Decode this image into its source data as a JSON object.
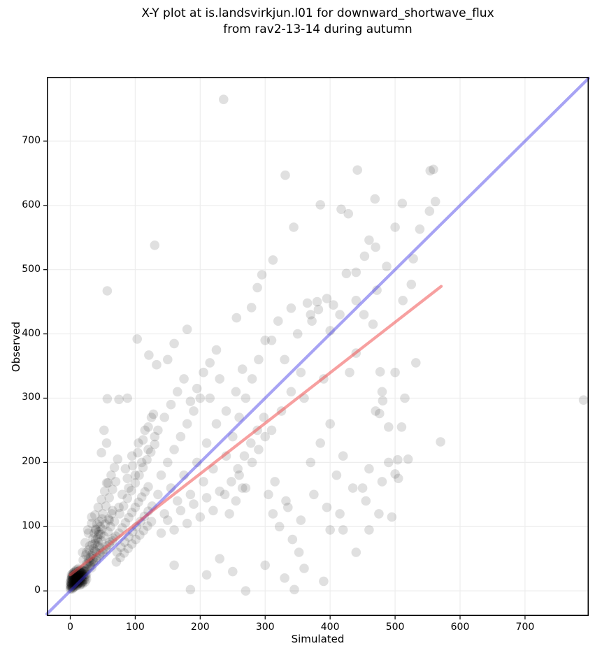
{
  "title": {
    "line1": "X-Y plot at is.landsvirkjun.l01 for downward_shortwave_flux",
    "line2": "from rav2-13-14 during autumn"
  },
  "chart_data": {
    "type": "scatter",
    "title": "X-Y plot at is.landsvirkjun.l01 for downward_shortwave_flux from rav2-13-14 during autumn",
    "xlabel": "Simulated",
    "ylabel": "Observed",
    "xlim": [
      -36,
      798
    ],
    "ylim": [
      -39,
      800
    ],
    "xticks": [
      0,
      100,
      200,
      300,
      400,
      500,
      600,
      700
    ],
    "yticks": [
      0,
      100,
      200,
      300,
      400,
      500,
      600,
      700
    ],
    "grid": true,
    "legend": "none",
    "colors": {
      "background": "#ffffff",
      "gridline": "#ededed",
      "frame": "#000000",
      "marker": "rgba(0,0,0,0.12)",
      "one_to_one_line": "#3c32e6",
      "fit_line": "#f05252"
    },
    "marker_radius": 6.8,
    "lines": [
      {
        "name": "one-to-one",
        "x1": -36,
        "y1": -36,
        "x2": 798,
        "y2": 798,
        "color": "#3c32e6",
        "opacity": 0.45,
        "width": 4.2
      },
      {
        "name": "fit",
        "x1": 0,
        "y1": 25,
        "x2": 571,
        "y2": 474,
        "color": "#f05252",
        "opacity": 0.55,
        "width": 4.2
      }
    ],
    "points": [
      [
        1,
        4
      ],
      [
        2,
        6
      ],
      [
        3,
        3
      ],
      [
        4,
        8
      ],
      [
        5,
        5
      ],
      [
        6,
        10
      ],
      [
        2,
        12
      ],
      [
        7,
        7
      ],
      [
        8,
        12
      ],
      [
        3,
        16
      ],
      [
        9,
        9
      ],
      [
        10,
        14
      ],
      [
        4,
        20
      ],
      [
        11,
        11
      ],
      [
        12,
        16
      ],
      [
        5,
        24
      ],
      [
        13,
        13
      ],
      [
        14,
        18
      ],
      [
        6,
        9
      ],
      [
        15,
        15
      ],
      [
        1,
        10
      ],
      [
        2,
        18
      ],
      [
        3,
        22
      ],
      [
        4,
        14
      ],
      [
        5,
        28
      ],
      [
        6,
        18
      ],
      [
        7,
        22
      ],
      [
        8,
        26
      ],
      [
        9,
        30
      ],
      [
        10,
        20
      ],
      [
        11,
        25
      ],
      [
        12,
        30
      ],
      [
        13,
        35
      ],
      [
        14,
        28
      ],
      [
        15,
        22
      ],
      [
        16,
        16
      ],
      [
        17,
        20
      ],
      [
        18,
        24
      ],
      [
        19,
        28
      ],
      [
        20,
        32
      ],
      [
        0,
        3
      ],
      [
        1,
        7
      ],
      [
        2,
        9
      ],
      [
        3,
        11
      ],
      [
        4,
        5
      ],
      [
        5,
        13
      ],
      [
        6,
        15
      ],
      [
        7,
        17
      ],
      [
        8,
        19
      ],
      [
        9,
        21
      ],
      [
        10,
        8
      ],
      [
        11,
        17
      ],
      [
        12,
        21
      ],
      [
        13,
        25
      ],
      [
        14,
        12
      ],
      [
        15,
        30
      ],
      [
        16,
        24
      ],
      [
        17,
        28
      ],
      [
        18,
        32
      ],
      [
        19,
        22
      ],
      [
        0,
        8
      ],
      [
        1,
        13
      ],
      [
        2,
        15
      ],
      [
        3,
        7
      ],
      [
        4,
        17
      ],
      [
        5,
        19
      ],
      [
        6,
        21
      ],
      [
        7,
        11
      ],
      [
        8,
        23
      ],
      [
        9,
        13
      ],
      [
        10,
        26
      ],
      [
        11,
        9
      ],
      [
        12,
        12
      ],
      [
        13,
        19
      ],
      [
        14,
        23
      ],
      [
        15,
        9
      ],
      [
        16,
        28
      ],
      [
        17,
        13
      ],
      [
        18,
        17
      ],
      [
        19,
        11
      ],
      [
        2,
        25
      ],
      [
        4,
        27
      ],
      [
        6,
        29
      ],
      [
        8,
        31
      ],
      [
        10,
        33
      ],
      [
        12,
        27
      ],
      [
        14,
        31
      ],
      [
        16,
        33
      ],
      [
        18,
        28
      ],
      [
        20,
        25
      ],
      [
        1,
        18
      ],
      [
        3,
        20
      ],
      [
        5,
        22
      ],
      [
        7,
        24
      ],
      [
        9,
        26
      ],
      [
        11,
        20
      ],
      [
        13,
        15
      ],
      [
        15,
        18
      ],
      [
        17,
        24
      ],
      [
        19,
        16
      ],
      [
        0,
        14
      ],
      [
        2,
        22
      ],
      [
        4,
        24
      ],
      [
        6,
        26
      ],
      [
        8,
        15
      ],
      [
        10,
        17
      ],
      [
        12,
        19
      ],
      [
        14,
        21
      ],
      [
        16,
        11
      ],
      [
        18,
        13
      ],
      [
        20,
        15
      ],
      [
        22,
        18
      ],
      [
        21,
        22
      ],
      [
        23,
        26
      ],
      [
        22,
        30
      ],
      [
        24,
        22
      ],
      [
        25,
        26
      ],
      [
        24,
        32
      ],
      [
        23,
        14
      ],
      [
        25,
        18
      ],
      [
        32,
        44
      ],
      [
        34,
        58
      ],
      [
        36,
        66
      ],
      [
        38,
        74
      ],
      [
        42,
        82
      ],
      [
        44,
        92
      ],
      [
        46,
        100
      ],
      [
        40,
        60
      ],
      [
        35,
        50
      ],
      [
        37,
        90
      ],
      [
        41,
        104
      ],
      [
        43,
        76
      ],
      [
        47,
        88
      ],
      [
        49,
        112
      ],
      [
        33,
        36
      ],
      [
        39,
        96
      ],
      [
        45,
        68
      ],
      [
        31,
        52
      ],
      [
        29,
        46
      ],
      [
        27,
        42
      ],
      [
        22,
        35
      ],
      [
        25,
        42
      ],
      [
        28,
        50
      ],
      [
        30,
        38
      ],
      [
        32,
        55
      ],
      [
        35,
        45
      ],
      [
        38,
        62
      ],
      [
        40,
        48
      ],
      [
        42,
        70
      ],
      [
        45,
        55
      ],
      [
        48,
        78
      ],
      [
        50,
        60
      ],
      [
        52,
        85
      ],
      [
        55,
        65
      ],
      [
        58,
        92
      ],
      [
        60,
        72
      ],
      [
        62,
        100
      ],
      [
        65,
        78
      ],
      [
        68,
        108
      ],
      [
        70,
        85
      ],
      [
        25,
        60
      ],
      [
        30,
        70
      ],
      [
        35,
        82
      ],
      [
        40,
        95
      ],
      [
        45,
        108
      ],
      [
        50,
        120
      ],
      [
        55,
        132
      ],
      [
        60,
        145
      ],
      [
        65,
        158
      ],
      [
        70,
        170
      ],
      [
        28,
        90
      ],
      [
        33,
        105
      ],
      [
        38,
        118
      ],
      [
        43,
        130
      ],
      [
        48,
        142
      ],
      [
        53,
        155
      ],
      [
        58,
        168
      ],
      [
        63,
        180
      ],
      [
        68,
        192
      ],
      [
        73,
        205
      ],
      [
        20,
        48
      ],
      [
        24,
        56
      ],
      [
        29,
        64
      ],
      [
        34,
        72
      ],
      [
        39,
        80
      ],
      [
        44,
        88
      ],
      [
        49,
        96
      ],
      [
        54,
        104
      ],
      [
        59,
        112
      ],
      [
        64,
        120
      ],
      [
        75,
        90
      ],
      [
        80,
        98
      ],
      [
        85,
        106
      ],
      [
        90,
        114
      ],
      [
        95,
        122
      ],
      [
        100,
        130
      ],
      [
        105,
        138
      ],
      [
        110,
        146
      ],
      [
        115,
        154
      ],
      [
        120,
        162
      ],
      [
        76,
        120
      ],
      [
        82,
        132
      ],
      [
        88,
        144
      ],
      [
        94,
        156
      ],
      [
        100,
        168
      ],
      [
        106,
        180
      ],
      [
        112,
        192
      ],
      [
        118,
        204
      ],
      [
        124,
        216
      ],
      [
        130,
        228
      ],
      [
        72,
        60
      ],
      [
        78,
        68
      ],
      [
        84,
        76
      ],
      [
        90,
        84
      ],
      [
        96,
        92
      ],
      [
        102,
        100
      ],
      [
        108,
        108
      ],
      [
        114,
        116
      ],
      [
        120,
        124
      ],
      [
        126,
        132
      ],
      [
        21,
        30
      ],
      [
        26,
        34
      ],
      [
        31,
        40
      ],
      [
        36,
        46
      ],
      [
        41,
        52
      ],
      [
        46,
        58
      ],
      [
        51,
        64
      ],
      [
        56,
        70
      ],
      [
        61,
        76
      ],
      [
        66,
        82
      ],
      [
        71,
        45
      ],
      [
        77,
        52
      ],
      [
        83,
        59
      ],
      [
        89,
        66
      ],
      [
        95,
        73
      ],
      [
        101,
        80
      ],
      [
        107,
        87
      ],
      [
        113,
        94
      ],
      [
        119,
        101
      ],
      [
        125,
        108
      ],
      [
        23,
        75
      ],
      [
        27,
        95
      ],
      [
        33,
        115
      ],
      [
        19,
        60
      ],
      [
        48,
        215
      ],
      [
        52,
        250
      ],
      [
        135,
        150
      ],
      [
        140,
        180
      ],
      [
        145,
        120
      ],
      [
        150,
        200
      ],
      [
        155,
        160
      ],
      [
        160,
        220
      ],
      [
        165,
        140
      ],
      [
        170,
        240
      ],
      [
        175,
        180
      ],
      [
        180,
        260
      ],
      [
        185,
        150
      ],
      [
        190,
        280
      ],
      [
        195,
        200
      ],
      [
        200,
        300
      ],
      [
        205,
        170
      ],
      [
        210,
        230
      ],
      [
        215,
        300
      ],
      [
        220,
        190
      ],
      [
        225,
        260
      ],
      [
        230,
        330
      ],
      [
        140,
        90
      ],
      [
        150,
        110
      ],
      [
        160,
        95
      ],
      [
        170,
        125
      ],
      [
        180,
        105
      ],
      [
        190,
        135
      ],
      [
        200,
        115
      ],
      [
        210,
        145
      ],
      [
        220,
        125
      ],
      [
        230,
        155
      ],
      [
        135,
        250
      ],
      [
        145,
        270
      ],
      [
        155,
        290
      ],
      [
        165,
        310
      ],
      [
        175,
        330
      ],
      [
        185,
        295
      ],
      [
        195,
        315
      ],
      [
        205,
        340
      ],
      [
        215,
        355
      ],
      [
        225,
        375
      ],
      [
        240,
        210
      ],
      [
        250,
        240
      ],
      [
        260,
        270
      ],
      [
        270,
        300
      ],
      [
        280,
        330
      ],
      [
        290,
        360
      ],
      [
        300,
        390
      ],
      [
        240,
        280
      ],
      [
        255,
        310
      ],
      [
        265,
        345
      ],
      [
        238,
        150
      ],
      [
        248,
        170
      ],
      [
        258,
        190
      ],
      [
        268,
        210
      ],
      [
        278,
        230
      ],
      [
        288,
        250
      ],
      [
        298,
        270
      ],
      [
        245,
        120
      ],
      [
        255,
        140
      ],
      [
        265,
        160
      ],
      [
        90,
        160
      ],
      [
        100,
        180
      ],
      [
        110,
        200
      ],
      [
        120,
        220
      ],
      [
        130,
        240
      ],
      [
        95,
        210
      ],
      [
        105,
        230
      ],
      [
        115,
        250
      ],
      [
        125,
        270
      ],
      [
        85,
        190
      ],
      [
        75,
        130
      ],
      [
        80,
        150
      ],
      [
        88,
        175
      ],
      [
        96,
        195
      ],
      [
        104,
        215
      ],
      [
        112,
        235
      ],
      [
        120,
        255
      ],
      [
        128,
        275
      ],
      [
        60,
        110
      ],
      [
        65,
        125
      ],
      [
        57,
        467
      ],
      [
        103,
        392
      ],
      [
        130,
        538
      ],
      [
        57,
        299
      ],
      [
        75,
        298
      ],
      [
        88,
        300
      ],
      [
        121,
        367
      ],
      [
        133,
        352
      ],
      [
        180,
        407
      ],
      [
        150,
        360
      ],
      [
        160,
        385
      ],
      [
        56,
        230
      ],
      [
        56,
        168
      ],
      [
        310,
        390
      ],
      [
        320,
        420
      ],
      [
        330,
        360
      ],
      [
        340,
        440
      ],
      [
        350,
        400
      ],
      [
        360,
        300
      ],
      [
        370,
        430
      ],
      [
        380,
        450
      ],
      [
        390,
        330
      ],
      [
        400,
        405
      ],
      [
        256,
        425
      ],
      [
        279,
        441
      ],
      [
        295,
        492
      ],
      [
        310,
        250
      ],
      [
        325,
        280
      ],
      [
        340,
        310
      ],
      [
        355,
        340
      ],
      [
        370,
        200
      ],
      [
        385,
        230
      ],
      [
        400,
        260
      ],
      [
        410,
        180
      ],
      [
        420,
        210
      ],
      [
        430,
        340
      ],
      [
        440,
        370
      ],
      [
        450,
        160
      ],
      [
        460,
        190
      ],
      [
        470,
        280
      ],
      [
        480,
        310
      ],
      [
        490,
        200
      ],
      [
        500,
        340
      ],
      [
        305,
        150
      ],
      [
        315,
        170
      ],
      [
        335,
        130
      ],
      [
        355,
        110
      ],
      [
        375,
        150
      ],
      [
        395,
        130
      ],
      [
        415,
        120
      ],
      [
        435,
        160
      ],
      [
        455,
        140
      ],
      [
        475,
        120
      ],
      [
        260,
        180
      ],
      [
        270,
        160
      ],
      [
        280,
        200
      ],
      [
        290,
        220
      ],
      [
        300,
        240
      ],
      [
        312,
        120
      ],
      [
        322,
        100
      ],
      [
        332,
        140
      ],
      [
        342,
        80
      ],
      [
        352,
        60
      ],
      [
        420,
        95
      ],
      [
        440,
        60
      ],
      [
        460,
        95
      ],
      [
        480,
        170
      ],
      [
        495,
        115
      ],
      [
        505,
        175
      ],
      [
        510,
        255
      ],
      [
        520,
        205
      ],
      [
        515,
        300
      ],
      [
        490,
        255
      ],
      [
        236,
        765
      ],
      [
        331,
        647
      ],
      [
        385,
        601
      ],
      [
        442,
        655
      ],
      [
        469,
        610
      ],
      [
        511,
        603
      ],
      [
        554,
        654
      ],
      [
        559,
        656
      ],
      [
        562,
        606
      ],
      [
        553,
        591
      ],
      [
        500,
        566
      ],
      [
        528,
        517
      ],
      [
        417,
        594
      ],
      [
        428,
        587
      ],
      [
        453,
        521
      ],
      [
        440,
        496
      ],
      [
        425,
        494
      ],
      [
        460,
        546
      ],
      [
        470,
        535
      ],
      [
        395,
        455
      ],
      [
        405,
        445
      ],
      [
        415,
        430
      ],
      [
        372,
        420
      ],
      [
        382,
        438
      ],
      [
        365,
        448
      ],
      [
        344,
        566
      ],
      [
        312,
        515
      ],
      [
        288,
        472
      ],
      [
        532,
        355
      ],
      [
        477,
        341
      ],
      [
        481,
        296
      ],
      [
        476,
        276
      ],
      [
        570,
        232
      ],
      [
        504,
        204
      ],
      [
        500,
        182
      ],
      [
        790,
        297
      ],
      [
        538,
        563
      ],
      [
        525,
        477
      ],
      [
        512,
        452
      ],
      [
        185,
        2
      ],
      [
        270,
        0
      ],
      [
        345,
        2
      ],
      [
        400,
        95
      ],
      [
        230,
        50
      ],
      [
        250,
        30
      ],
      [
        300,
        40
      ],
      [
        330,
        20
      ],
      [
        360,
        35
      ],
      [
        390,
        15
      ],
      [
        160,
        40
      ],
      [
        210,
        25
      ],
      [
        487,
        505
      ],
      [
        472,
        468
      ],
      [
        440,
        452
      ],
      [
        452,
        430
      ],
      [
        466,
        415
      ]
    ]
  }
}
